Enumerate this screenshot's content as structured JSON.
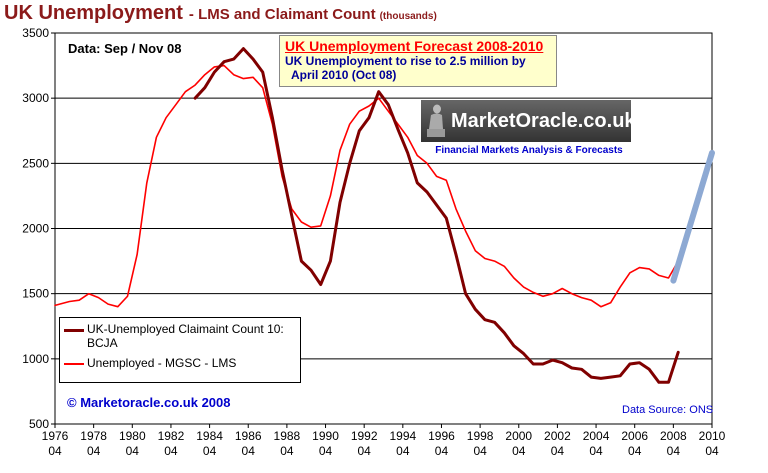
{
  "title": {
    "main": "UK Unemployment",
    "sub": "- LMS and Claimant Count",
    "unit": "(thousands)"
  },
  "data_note": "Data: Sep / Nov 08",
  "forecast_box": {
    "title": "UK Unemployment Forecast 2008-2010",
    "line1": "UK Unemployment to rise to 2.5 million by",
    "line2": "April 2010  (Oct 08)"
  },
  "logo": {
    "name": "MarketOracle.co.uk",
    "tagline": "Financial Markets Analysis & Forecasts"
  },
  "legend": {
    "claimant": "UK-Unemployed Claimaint Count 10: BCJA",
    "lms": "Unemployed - MGSC - LMS"
  },
  "copyright": "© Marketoracle.co.uk  2008",
  "source": "Data Source: ONS",
  "colors": {
    "lms": "#ff0000",
    "claimant": "#800000",
    "forecast": "#8da9d3",
    "title": "#8b1a1a"
  },
  "chart_data": {
    "type": "line",
    "xlim": [
      1976.25,
      2010.25
    ],
    "ylim": [
      500,
      3500
    ],
    "yticks": [
      500,
      1000,
      1500,
      2000,
      2500,
      3000,
      3500
    ],
    "xtick_years": [
      "1976",
      "1978",
      "1980",
      "1982",
      "1984",
      "1986",
      "1988",
      "1990",
      "1992",
      "1994",
      "1996",
      "1998",
      "2000",
      "2002",
      "2004",
      "2006",
      "2008",
      "2010"
    ],
    "xtick_month": "04",
    "grid": "horizontal",
    "legend_position": "bottom-left",
    "series": [
      {
        "name": "Unemployed - MGSC - LMS",
        "x": [
          1976.25,
          1977,
          1977.5,
          1978,
          1978.5,
          1979,
          1979.5,
          1980,
          1980.5,
          1981,
          1981.5,
          1982,
          1982.5,
          1983,
          1983.5,
          1984,
          1984.5,
          1985,
          1985.5,
          1986,
          1986.5,
          1987,
          1987.5,
          1988,
          1988.5,
          1989,
          1989.5,
          1990,
          1990.5,
          1991,
          1991.5,
          1992,
          1992.5,
          1993,
          1993.5,
          1994,
          1994.5,
          1995,
          1995.5,
          1996,
          1996.5,
          1997,
          1997.5,
          1998,
          1998.5,
          1999,
          1999.5,
          2000,
          2000.5,
          2001,
          2001.5,
          2002,
          2002.5,
          2003,
          2003.5,
          2004,
          2004.5,
          2005,
          2005.5,
          2006,
          2006.5,
          2007,
          2007.5,
          2008,
          2008.5
        ],
        "values": [
          1410,
          1440,
          1450,
          1500,
          1470,
          1420,
          1400,
          1480,
          1800,
          2350,
          2700,
          2850,
          2950,
          3050,
          3100,
          3180,
          3240,
          3250,
          3180,
          3150,
          3160,
          3080,
          2800,
          2400,
          2150,
          2050,
          2010,
          2020,
          2250,
          2600,
          2800,
          2900,
          2940,
          3000,
          2900,
          2800,
          2700,
          2560,
          2500,
          2400,
          2370,
          2150,
          1980,
          1830,
          1770,
          1750,
          1710,
          1620,
          1550,
          1510,
          1480,
          1500,
          1540,
          1500,
          1470,
          1450,
          1400,
          1430,
          1550,
          1660,
          1700,
          1690,
          1640,
          1620,
          1750
        ]
      },
      {
        "name": "UK-Unemployed Claimaint Count 10: BCJA",
        "x": [
          1983.5,
          1984,
          1984.5,
          1985,
          1985.5,
          1986,
          1986.5,
          1987,
          1987.5,
          1988,
          1988.5,
          1989,
          1989.5,
          1990,
          1990.5,
          1991,
          1991.5,
          1992,
          1992.5,
          1993,
          1993.5,
          1994,
          1994.5,
          1995,
          1995.5,
          1996,
          1996.5,
          1997,
          1997.5,
          1998,
          1998.5,
          1999,
          1999.5,
          2000,
          2000.5,
          2001,
          2001.5,
          2002,
          2002.5,
          2003,
          2003.5,
          2004,
          2004.5,
          2005,
          2005.5,
          2006,
          2006.5,
          2007,
          2007.5,
          2008,
          2008.5
        ],
        "values": [
          3000,
          3080,
          3200,
          3280,
          3300,
          3380,
          3300,
          3200,
          2850,
          2450,
          2100,
          1750,
          1680,
          1570,
          1750,
          2200,
          2500,
          2750,
          2850,
          3050,
          2950,
          2760,
          2580,
          2350,
          2280,
          2180,
          2080,
          1800,
          1500,
          1380,
          1300,
          1280,
          1200,
          1100,
          1040,
          960,
          960,
          990,
          970,
          930,
          920,
          860,
          850,
          860,
          870,
          960,
          970,
          920,
          820,
          820,
          1050
        ]
      },
      {
        "name": "",
        "x": [
          2008.25,
          2010.25
        ],
        "values": [
          1600,
          2580
        ]
      }
    ]
  }
}
